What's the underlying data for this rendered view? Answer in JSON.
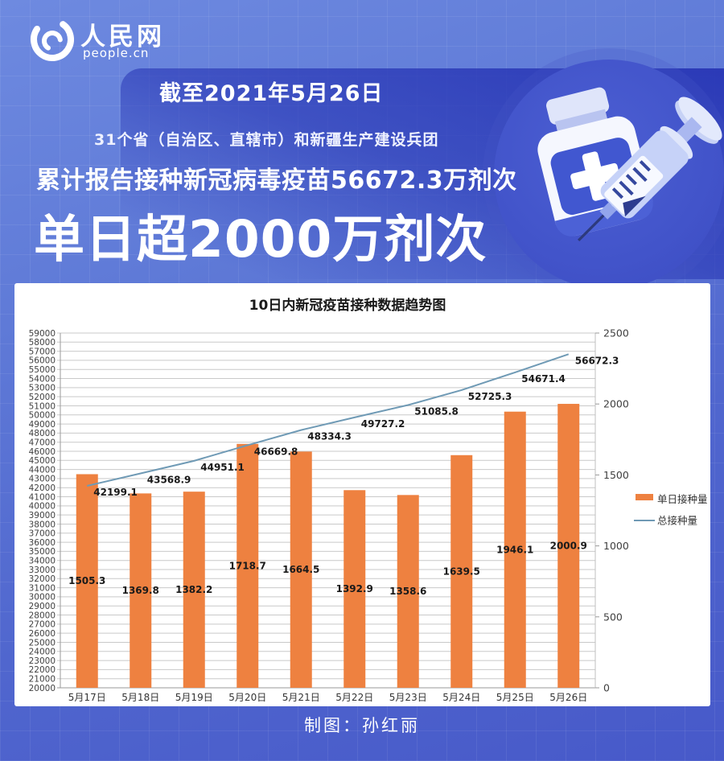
{
  "brand": {
    "name": "人民网",
    "domain": "people.cn"
  },
  "banner": {
    "date_line": "截至2021年5月26日",
    "region_line": "31个省（自治区、直辖市）和新疆生产建设兵团",
    "cumulative_line": "累计报告接种新冠病毒疫苗56672.3万剂次",
    "daily_line": "单日超2000万剂次"
  },
  "footer": {
    "credit": "制图：孙红丽"
  },
  "colors": {
    "background_blue": "#5f7ad7",
    "panel_dark_blue": "#2836b5",
    "bar_orange": "#EE8140",
    "line_steel_blue": "#6F9AB5",
    "chart_text": "#333333",
    "gridline": "#c9c9c9",
    "white": "#ffffff"
  },
  "chart_data": {
    "type": "combo",
    "title": "10日内新冠疫苗接种数据趋势图",
    "categories": [
      "5月17日",
      "5月18日",
      "5月19日",
      "5月20日",
      "5月21日",
      "5月22日",
      "5月23日",
      "5月24日",
      "5月25日",
      "5月26日"
    ],
    "series": [
      {
        "name": "单日接种量",
        "type": "bar",
        "axis": "right",
        "color": "#EE8140",
        "values": [
          1505.3,
          1369.8,
          1382.2,
          1718.7,
          1664.5,
          1392.9,
          1358.6,
          1639.5,
          1946.1,
          2000.9
        ]
      },
      {
        "name": "总接种量",
        "type": "line",
        "axis": "left",
        "color": "#6F9AB5",
        "values": [
          42199.1,
          43568.9,
          44951.1,
          46669.8,
          48334.3,
          49727.2,
          51085.8,
          52725.3,
          54671.4,
          56672.3
        ]
      }
    ],
    "left_axis": {
      "min": 20000,
      "max": 59000,
      "step": 1000
    },
    "right_axis": {
      "min": 0,
      "max": 2500,
      "step": 500
    },
    "grid": true,
    "legend_position": "right"
  }
}
